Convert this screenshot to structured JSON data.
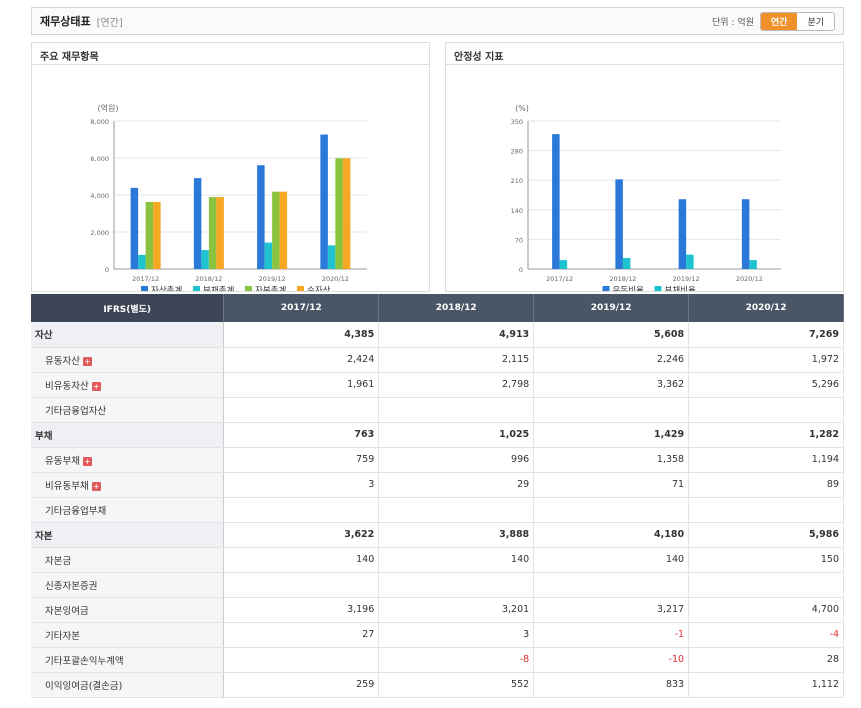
{
  "header": {
    "title": "재무상태표",
    "sub": "[연간]",
    "unit": "단위 : 억원",
    "tab_annual": "연간",
    "tab_quarter": "분기"
  },
  "panels": {
    "left_title": "주요 재무항목",
    "right_title": "안정성 지표"
  },
  "chart_data": [
    {
      "type": "bar",
      "title": "주요 재무항목",
      "ylabel": "(억원)",
      "ylim": [
        0,
        8000
      ],
      "yticks": [
        "8,000",
        "6,000",
        "4,000",
        "2,000",
        "0"
      ],
      "categories": [
        "2017/12",
        "2018/12",
        "2019/12",
        "2020/12"
      ],
      "series": [
        {
          "name": "자산총계",
          "color": "#2a78d8",
          "values": [
            4385,
            4913,
            5608,
            7269
          ]
        },
        {
          "name": "부채총계",
          "color": "#1fc3cf",
          "values": [
            763,
            1025,
            1429,
            1282
          ]
        },
        {
          "name": "자본총계",
          "color": "#8ac43f",
          "values": [
            3622,
            3888,
            4180,
            5986
          ]
        },
        {
          "name": "순자산",
          "color": "#f7a823",
          "values": [
            3622,
            3888,
            4180,
            5986
          ]
        }
      ],
      "legend": "bottom"
    },
    {
      "type": "bar",
      "title": "안정성 지표",
      "ylabel": "(%)",
      "ylim": [
        0,
        350
      ],
      "yticks": [
        "350",
        "280",
        "210",
        "140",
        "70",
        "0"
      ],
      "categories": [
        "2017/12",
        "2018/12",
        "2019/12",
        "2020/12"
      ],
      "series": [
        {
          "name": "유동비율",
          "color": "#2a78d8",
          "values": [
            319,
            212,
            165,
            165
          ]
        },
        {
          "name": "부채비율",
          "color": "#1fc3cf",
          "values": [
            21,
            26,
            34,
            21
          ]
        }
      ],
      "legend": "bottom"
    }
  ],
  "table": {
    "head": [
      "IFRS(별도)",
      "2017/12",
      "2018/12",
      "2019/12",
      "2020/12"
    ],
    "rows": [
      {
        "label": "자산",
        "grp": true,
        "v": [
          "4,385",
          "4,913",
          "5,608",
          "7,269"
        ]
      },
      {
        "label": "유동자산",
        "plus": true,
        "v": [
          "2,424",
          "2,115",
          "2,246",
          "1,972"
        ]
      },
      {
        "label": "비유동자산",
        "plus": true,
        "v": [
          "1,961",
          "2,798",
          "3,362",
          "5,296"
        ]
      },
      {
        "label": "기타금융업자산",
        "v": [
          "",
          "",
          "",
          ""
        ]
      },
      {
        "label": "부채",
        "grp": true,
        "v": [
          "763",
          "1,025",
          "1,429",
          "1,282"
        ]
      },
      {
        "label": "유동부채",
        "plus": true,
        "v": [
          "759",
          "996",
          "1,358",
          "1,194"
        ]
      },
      {
        "label": "비유동부채",
        "plus": true,
        "v": [
          "3",
          "29",
          "71",
          "89"
        ]
      },
      {
        "label": "기타금융업부채",
        "v": [
          "",
          "",
          "",
          ""
        ]
      },
      {
        "label": "자본",
        "grp": true,
        "v": [
          "3,622",
          "3,888",
          "4,180",
          "5,986"
        ]
      },
      {
        "label": "자본금",
        "v": [
          "140",
          "140",
          "140",
          "150"
        ]
      },
      {
        "label": "신종자본증권",
        "v": [
          "",
          "",
          "",
          ""
        ]
      },
      {
        "label": "자본잉여금",
        "v": [
          "3,196",
          "3,201",
          "3,217",
          "4,700"
        ]
      },
      {
        "label": "기타자본",
        "v": [
          "27",
          "3",
          "-1",
          "-4"
        ]
      },
      {
        "label": "기타포괄손익누계액",
        "v": [
          "",
          "-8",
          "-10",
          "28"
        ]
      },
      {
        "label": "이익잉여금(결손금)",
        "v": [
          "259",
          "552",
          "833",
          "1,112"
        ]
      }
    ]
  }
}
